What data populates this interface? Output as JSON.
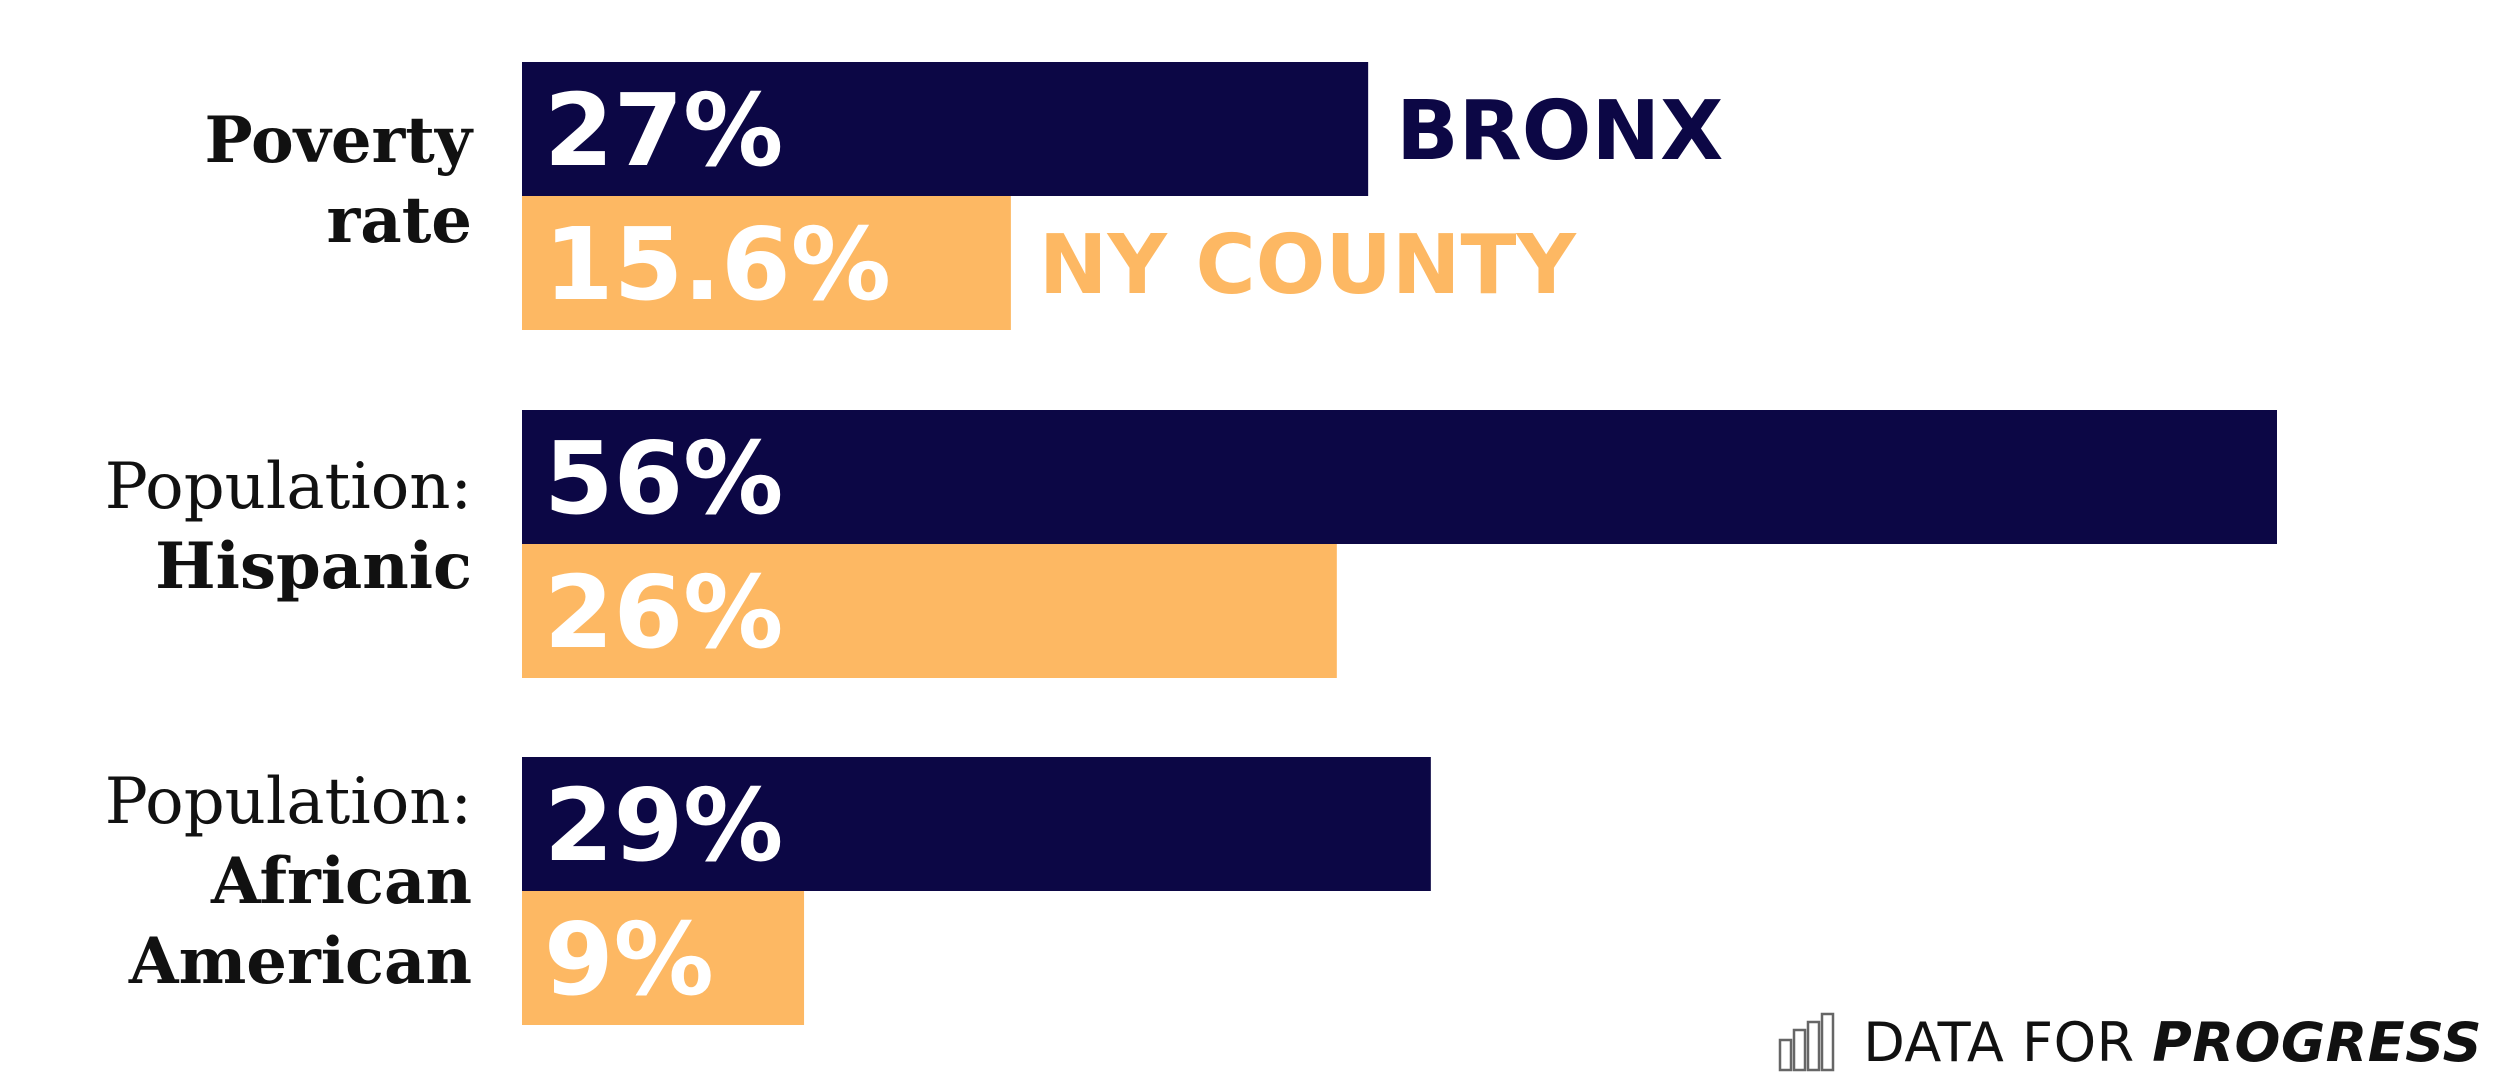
{
  "chart_data": {
    "type": "bar",
    "orientation": "horizontal",
    "categories": [
      {
        "line1": "Poverty",
        "line2": "rate",
        "line3": ""
      },
      {
        "line1": "Population:",
        "line2": "Hispanic",
        "line3": ""
      },
      {
        "line1": "Population:",
        "line2": "African",
        "line3": "American"
      }
    ],
    "series": [
      {
        "name": "BRONX",
        "color": "#0c0745",
        "values": [
          27,
          56,
          29
        ],
        "labels": [
          "27%",
          "56%",
          "29%"
        ]
      },
      {
        "name": "NY COUNTY",
        "color": "#fdb863",
        "values": [
          15.6,
          26,
          9
        ],
        "labels": [
          "15.6%",
          "26%",
          "9%"
        ]
      }
    ],
    "xlim": [
      0,
      60
    ],
    "grid": false,
    "legend": "inline-first-group"
  },
  "brand": {
    "light": "DATA FOR",
    "bold": "PROGRESS",
    "icon": "bar-chart-icon"
  }
}
